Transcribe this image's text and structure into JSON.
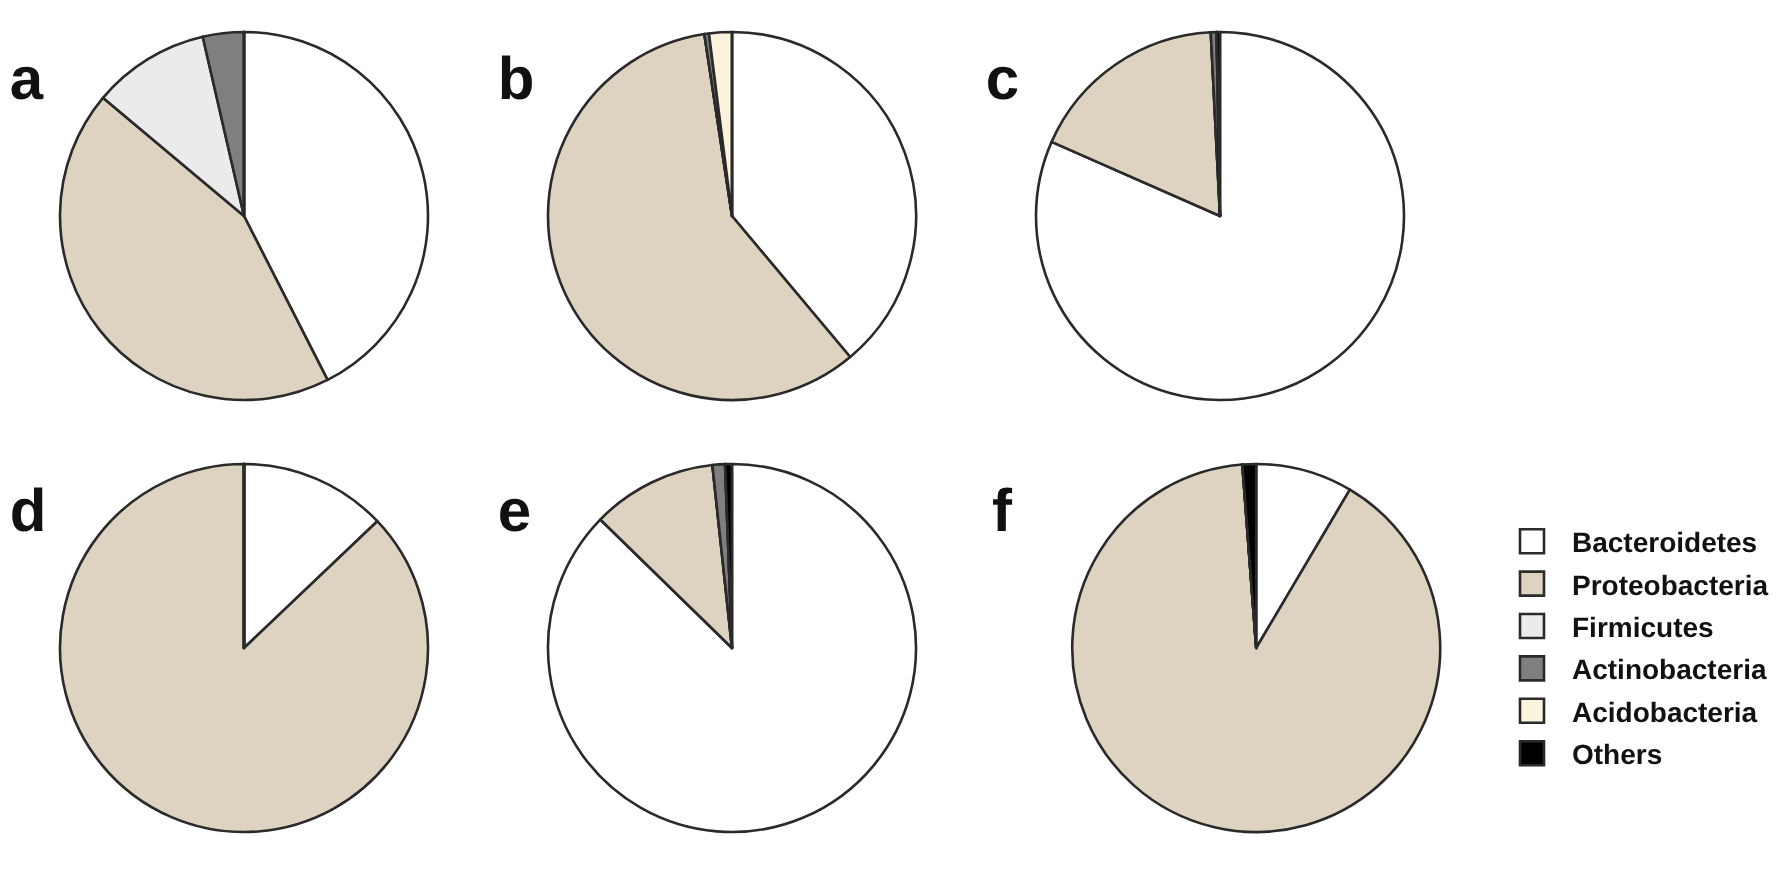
{
  "chart_data": [
    {
      "type": "pie",
      "title": "a",
      "categories": [
        null,
        null,
        null,
        null,
        null,
        null
      ],
      "values": [
        42.5,
        43.6,
        10.3,
        3.6,
        0,
        0
      ],
      "colors": [
        "#ffffff",
        "#ddd3c0",
        "#ebebeb",
        "#7f7f7f",
        "#fbf3dc",
        "#000000"
      ]
    },
    {
      "type": "pie",
      "title": "b",
      "categories": [
        null,
        null,
        null,
        null,
        null,
        null
      ],
      "values": [
        38.9,
        58.7,
        0,
        0.4,
        2.0,
        0
      ],
      "colors": [
        "#ffffff",
        "#ddd3c0",
        "#ebebeb",
        "#7f7f7f",
        "#fbf3dc",
        "#000000"
      ]
    },
    {
      "type": "pie",
      "title": "c",
      "categories": [
        null,
        null,
        null,
        null,
        null,
        null
      ],
      "values": [
        81.6,
        17.6,
        0,
        0.5,
        0,
        0.3
      ],
      "colors": [
        "#ffffff",
        "#ddd3c0",
        "#ebebeb",
        "#7f7f7f",
        "#fbf3dc",
        "#000000"
      ]
    },
    {
      "type": "pie",
      "title": "d",
      "categories": [
        null,
        null,
        null,
        null,
        null,
        null
      ],
      "values": [
        12.9,
        87.1,
        0,
        0,
        0,
        0
      ],
      "colors": [
        "#ffffff",
        "#ddd3c0",
        "#ebebeb",
        "#7f7f7f",
        "#fbf3dc",
        "#000000"
      ]
    },
    {
      "type": "pie",
      "title": "e",
      "categories": [
        null,
        null,
        null,
        null,
        null,
        null
      ],
      "values": [
        87.3,
        11.0,
        0,
        1.1,
        0,
        0.6
      ],
      "colors": [
        "#ffffff",
        "#ddd3c0",
        "#ebebeb",
        "#7f7f7f",
        "#fbf3dc",
        "#000000"
      ]
    },
    {
      "type": "pie",
      "title": "f",
      "categories": [
        "Bacteroidetes",
        "Proteobacteria",
        "Firmicutes",
        "Actinobacteria",
        "Acidobacteria",
        "Others"
      ],
      "values": [
        8.5,
        90.3,
        0,
        0,
        0,
        1.2
      ],
      "colors": [
        "#ffffff",
        "#ddd3c0",
        "#ebebeb",
        "#7f7f7f",
        "#fbf3dc",
        "#000000"
      ],
      "legend": "right"
    }
  ]
}
